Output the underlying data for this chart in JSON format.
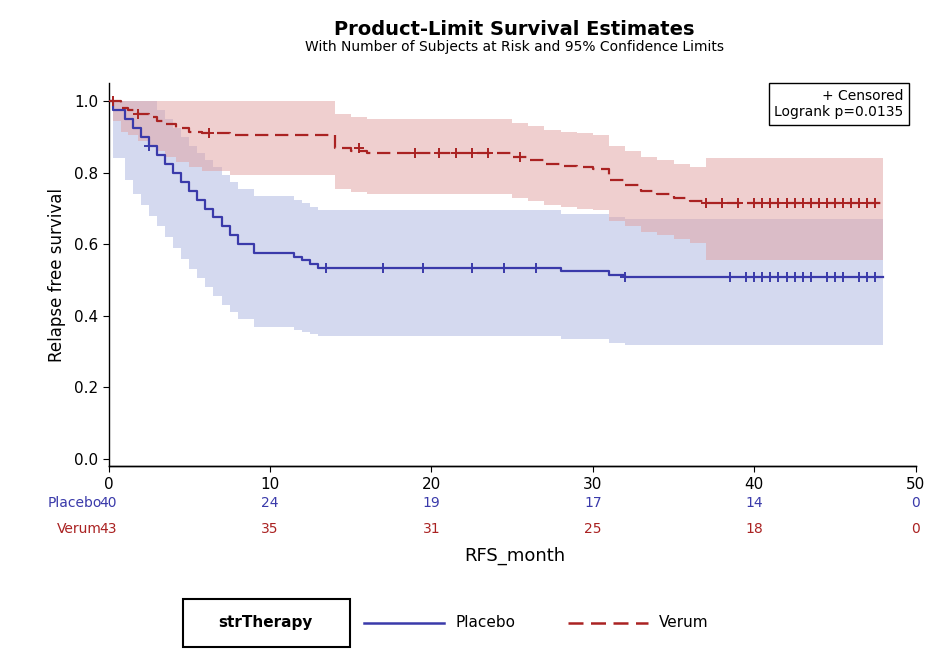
{
  "title": "Product-Limit Survival Estimates",
  "subtitle": "With Number of Subjects at Risk and 95% Confidence Limits",
  "xlabel": "RFS_month",
  "ylabel": "Relapse free survival",
  "xlim": [
    0,
    50
  ],
  "ylim": [
    -0.02,
    1.05
  ],
  "yticks": [
    0.0,
    0.2,
    0.4,
    0.6,
    0.8,
    1.0
  ],
  "xticks": [
    0,
    10,
    20,
    30,
    40,
    50
  ],
  "bg_color": "#ffffff",
  "placebo_color": "#3a3aaa",
  "verum_color": "#aa2222",
  "placebo_fill": "#aab4e0",
  "verum_fill": "#e0a0a0",
  "placebo_time": [
    0,
    0.3,
    1.0,
    1.5,
    2.0,
    2.5,
    3.0,
    3.5,
    4.0,
    4.5,
    5.0,
    5.5,
    6.0,
    6.5,
    7.0,
    7.5,
    8.0,
    8.5,
    9.0,
    9.5,
    10.0,
    10.5,
    11.0,
    11.5,
    12.0,
    12.5,
    13.0,
    13.5,
    14.0,
    15.0,
    16.0,
    17.0,
    18.0,
    19.0,
    20.0,
    22.0,
    24.0,
    26.0,
    27.0,
    28.0,
    30.0,
    31.0,
    32.0,
    34.0,
    36.0,
    38.0,
    39.0,
    40.0,
    41.0,
    42.0,
    43.0,
    44.0,
    45.0,
    46.0,
    47.0,
    48.0
  ],
  "placebo_surv": [
    1.0,
    0.975,
    0.95,
    0.925,
    0.9,
    0.875,
    0.85,
    0.825,
    0.8,
    0.775,
    0.75,
    0.725,
    0.7,
    0.675,
    0.65,
    0.625,
    0.6,
    0.6,
    0.575,
    0.575,
    0.575,
    0.575,
    0.575,
    0.565,
    0.555,
    0.545,
    0.535,
    0.535,
    0.535,
    0.535,
    0.535,
    0.535,
    0.535,
    0.535,
    0.535,
    0.535,
    0.535,
    0.535,
    0.535,
    0.525,
    0.525,
    0.515,
    0.51,
    0.51,
    0.51,
    0.51,
    0.51,
    0.51,
    0.51,
    0.51,
    0.51,
    0.51,
    0.51,
    0.51,
    0.51,
    0.51
  ],
  "placebo_upper": [
    1.0,
    1.0,
    1.0,
    1.0,
    1.0,
    1.0,
    0.975,
    0.95,
    0.925,
    0.9,
    0.875,
    0.855,
    0.835,
    0.815,
    0.795,
    0.775,
    0.755,
    0.755,
    0.735,
    0.735,
    0.735,
    0.735,
    0.735,
    0.725,
    0.715,
    0.705,
    0.695,
    0.695,
    0.695,
    0.695,
    0.695,
    0.695,
    0.695,
    0.695,
    0.695,
    0.695,
    0.695,
    0.695,
    0.695,
    0.685,
    0.685,
    0.675,
    0.67,
    0.67,
    0.67,
    0.67,
    0.67,
    0.67,
    0.67,
    0.67,
    0.67,
    0.67,
    0.67,
    0.67,
    0.67,
    0.64
  ],
  "placebo_lower": [
    1.0,
    0.84,
    0.78,
    0.74,
    0.71,
    0.68,
    0.65,
    0.62,
    0.59,
    0.56,
    0.53,
    0.505,
    0.48,
    0.455,
    0.43,
    0.41,
    0.39,
    0.39,
    0.37,
    0.37,
    0.37,
    0.37,
    0.37,
    0.36,
    0.355,
    0.35,
    0.345,
    0.345,
    0.345,
    0.345,
    0.345,
    0.345,
    0.345,
    0.345,
    0.345,
    0.345,
    0.345,
    0.345,
    0.345,
    0.335,
    0.335,
    0.325,
    0.32,
    0.32,
    0.32,
    0.32,
    0.32,
    0.32,
    0.32,
    0.32,
    0.32,
    0.32,
    0.32,
    0.32,
    0.32,
    0.37
  ],
  "verum_time": [
    0,
    0.3,
    0.8,
    1.2,
    1.8,
    2.5,
    3.0,
    3.5,
    4.2,
    5.0,
    5.8,
    6.5,
    7.5,
    8.5,
    9.5,
    10.5,
    11.5,
    12.5,
    13.5,
    14.0,
    15.0,
    16.0,
    17.0,
    18.0,
    19.0,
    20.0,
    21.0,
    22.0,
    23.0,
    24.0,
    25.0,
    26.0,
    27.0,
    28.0,
    29.0,
    30.0,
    31.0,
    32.0,
    33.0,
    34.0,
    35.0,
    36.0,
    37.0,
    38.0,
    39.0,
    40.0,
    41.0,
    42.0,
    43.0,
    44.0,
    45.0,
    46.0,
    47.0,
    48.0
  ],
  "verum_surv": [
    1.0,
    1.0,
    0.98,
    0.975,
    0.965,
    0.955,
    0.945,
    0.935,
    0.925,
    0.915,
    0.91,
    0.91,
    0.905,
    0.905,
    0.905,
    0.905,
    0.905,
    0.905,
    0.905,
    0.87,
    0.86,
    0.855,
    0.855,
    0.855,
    0.855,
    0.855,
    0.855,
    0.855,
    0.855,
    0.855,
    0.845,
    0.835,
    0.825,
    0.82,
    0.815,
    0.81,
    0.78,
    0.765,
    0.75,
    0.74,
    0.73,
    0.72,
    0.715,
    0.715,
    0.715,
    0.715,
    0.715,
    0.715,
    0.715,
    0.715,
    0.715,
    0.715,
    0.715,
    0.715
  ],
  "verum_upper": [
    1.0,
    1.0,
    1.0,
    1.0,
    1.0,
    1.0,
    1.0,
    1.0,
    1.0,
    1.0,
    1.0,
    1.0,
    1.0,
    1.0,
    1.0,
    1.0,
    1.0,
    1.0,
    1.0,
    0.965,
    0.955,
    0.95,
    0.95,
    0.95,
    0.95,
    0.95,
    0.95,
    0.95,
    0.95,
    0.95,
    0.94,
    0.93,
    0.92,
    0.915,
    0.91,
    0.905,
    0.875,
    0.86,
    0.845,
    0.835,
    0.825,
    0.815,
    0.84,
    0.84,
    0.84,
    0.84,
    0.84,
    0.84,
    0.84,
    0.84,
    0.84,
    0.84,
    0.84,
    0.84
  ],
  "verum_lower": [
    1.0,
    0.945,
    0.915,
    0.905,
    0.89,
    0.875,
    0.86,
    0.845,
    0.83,
    0.815,
    0.805,
    0.805,
    0.795,
    0.795,
    0.795,
    0.795,
    0.795,
    0.795,
    0.795,
    0.755,
    0.745,
    0.74,
    0.74,
    0.74,
    0.74,
    0.74,
    0.74,
    0.74,
    0.74,
    0.74,
    0.73,
    0.72,
    0.71,
    0.705,
    0.7,
    0.695,
    0.665,
    0.65,
    0.635,
    0.625,
    0.615,
    0.605,
    0.555,
    0.555,
    0.555,
    0.555,
    0.555,
    0.555,
    0.555,
    0.555,
    0.555,
    0.555,
    0.555,
    0.555
  ],
  "placebo_censored_times": [
    2.5,
    13.5,
    17.0,
    19.5,
    22.5,
    24.5,
    26.5,
    32.0,
    38.5,
    39.5,
    40.0,
    40.5,
    41.0,
    41.5,
    42.0,
    42.5,
    43.0,
    43.5,
    44.5,
    45.0,
    45.5,
    46.5,
    47.0,
    47.5
  ],
  "placebo_censored_surv": [
    0.875,
    0.535,
    0.535,
    0.535,
    0.535,
    0.535,
    0.535,
    0.51,
    0.51,
    0.51,
    0.51,
    0.51,
    0.51,
    0.51,
    0.51,
    0.51,
    0.51,
    0.51,
    0.51,
    0.51,
    0.51,
    0.51,
    0.51,
    0.51
  ],
  "verum_censored_times": [
    0.3,
    1.8,
    6.2,
    15.5,
    19.0,
    20.5,
    21.5,
    22.5,
    23.5,
    25.5,
    37.0,
    38.0,
    39.0,
    40.0,
    40.5,
    41.0,
    41.5,
    42.0,
    42.5,
    43.0,
    43.5,
    44.0,
    44.5,
    45.0,
    45.5,
    46.0,
    46.5,
    47.0,
    47.5
  ],
  "verum_censored_surv": [
    1.0,
    0.965,
    0.91,
    0.87,
    0.855,
    0.855,
    0.855,
    0.855,
    0.855,
    0.845,
    0.715,
    0.715,
    0.715,
    0.715,
    0.715,
    0.715,
    0.715,
    0.715,
    0.715,
    0.715,
    0.715,
    0.715,
    0.715,
    0.715,
    0.715,
    0.715,
    0.715,
    0.715,
    0.715
  ],
  "risk_times": [
    0,
    10,
    20,
    30,
    40,
    50
  ],
  "placebo_n": [
    40,
    24,
    19,
    17,
    14,
    0
  ],
  "verum_n": [
    43,
    35,
    31,
    25,
    18,
    0
  ]
}
